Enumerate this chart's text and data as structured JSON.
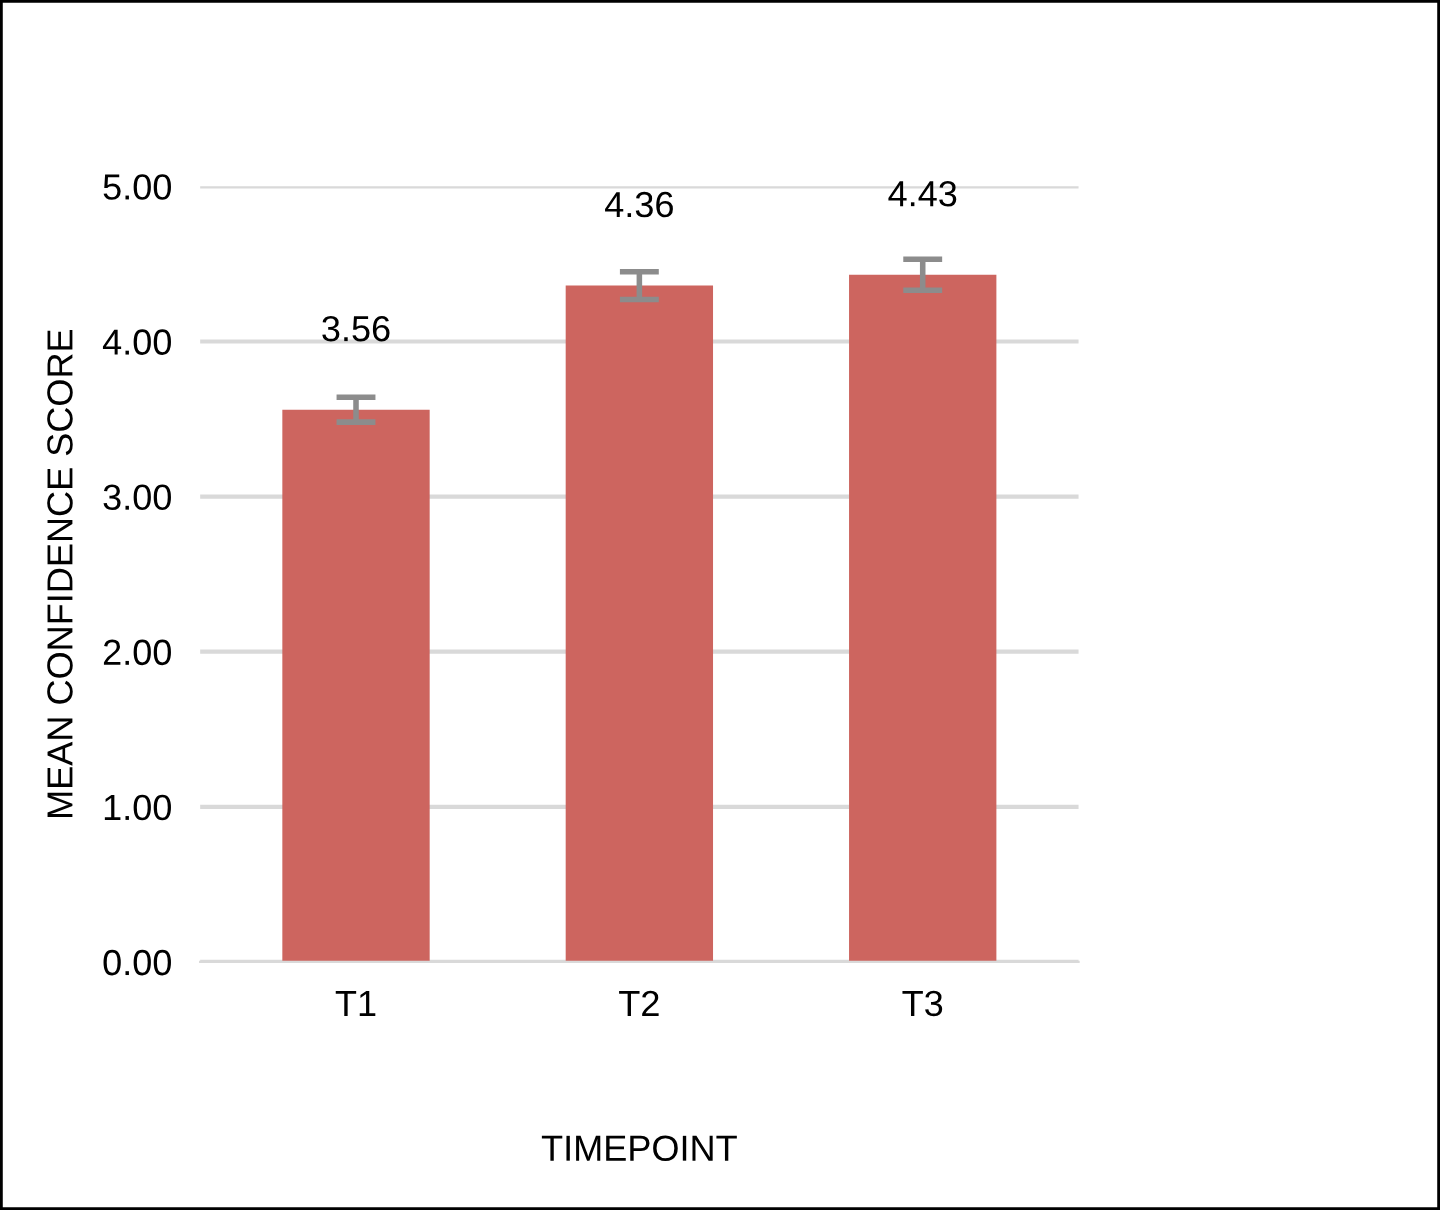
{
  "chart_data": {
    "type": "bar",
    "xlabel": "TIMEPOINT",
    "ylabel": "MEAN CONFIDENCE SCORE",
    "categories": [
      "T1",
      "T2",
      "T3"
    ],
    "values": [
      3.56,
      4.36,
      4.43
    ],
    "errors": [
      0.08,
      0.09,
      0.1
    ],
    "color": "#cd655f",
    "data_labels": true,
    "ylim": [
      0,
      5
    ],
    "yticks": [
      {
        "value": 0,
        "label": "0.00"
      },
      {
        "value": 1,
        "label": "1.00"
      },
      {
        "value": 2,
        "label": "2.00"
      },
      {
        "value": 3,
        "label": "3.00"
      },
      {
        "value": 4,
        "label": "4.00"
      },
      {
        "value": 5,
        "label": "5.00"
      }
    ],
    "grid": "y"
  }
}
